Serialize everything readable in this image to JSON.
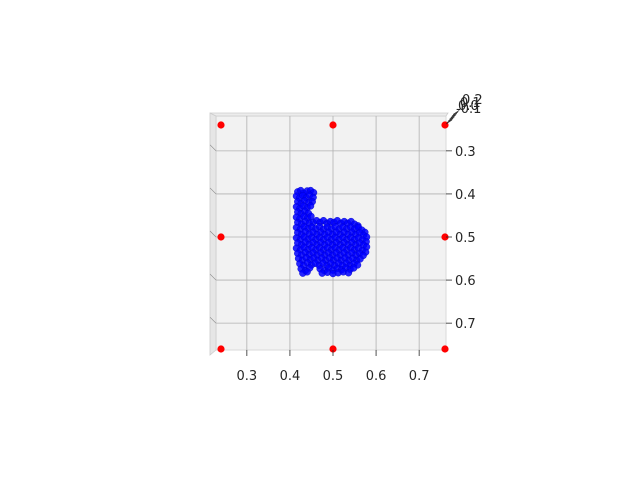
{
  "chart_data": {
    "type": "scatter",
    "projection": "3d",
    "view": "top-down (viewed along z axis)",
    "xlim": [
      0.24,
      0.76
    ],
    "ylim": [
      0.24,
      0.76
    ],
    "y_axis_inverted": true,
    "zlim": [
      -0.1,
      0.2
    ],
    "grid": true,
    "x_ticks": [
      "0.3",
      "0.4",
      "0.5",
      "0.6",
      "0.7"
    ],
    "y_ticks": [
      "0.3",
      "0.4",
      "0.5",
      "0.6",
      "0.7"
    ],
    "z_ticks": [
      "0.2",
      "0.1",
      "0.0",
      "-0.1"
    ],
    "series": [
      {
        "marker_color": "#0000ff",
        "description": "dense blue point cloud forming an L/boot shape",
        "points": [
          [
            0.418,
            0.395
          ],
          [
            0.425,
            0.392
          ],
          [
            0.432,
            0.398
          ],
          [
            0.44,
            0.393
          ],
          [
            0.448,
            0.392
          ],
          [
            0.455,
            0.397
          ],
          [
            0.415,
            0.405
          ],
          [
            0.422,
            0.41
          ],
          [
            0.43,
            0.404
          ],
          [
            0.438,
            0.409
          ],
          [
            0.446,
            0.403
          ],
          [
            0.454,
            0.408
          ],
          [
            0.418,
            0.418
          ],
          [
            0.426,
            0.422
          ],
          [
            0.434,
            0.416
          ],
          [
            0.444,
            0.42
          ],
          [
            0.452,
            0.418
          ],
          [
            0.415,
            0.43
          ],
          [
            0.423,
            0.434
          ],
          [
            0.431,
            0.428
          ],
          [
            0.44,
            0.432
          ],
          [
            0.448,
            0.428
          ],
          [
            0.418,
            0.442
          ],
          [
            0.426,
            0.446
          ],
          [
            0.435,
            0.44
          ],
          [
            0.443,
            0.445
          ],
          [
            0.415,
            0.454
          ],
          [
            0.423,
            0.458
          ],
          [
            0.432,
            0.452
          ],
          [
            0.441,
            0.456
          ],
          [
            0.449,
            0.452
          ],
          [
            0.418,
            0.466
          ],
          [
            0.427,
            0.47
          ],
          [
            0.436,
            0.464
          ],
          [
            0.445,
            0.468
          ],
          [
            0.454,
            0.466
          ],
          [
            0.462,
            0.462
          ],
          [
            0.47,
            0.466
          ],
          [
            0.478,
            0.462
          ],
          [
            0.486,
            0.468
          ],
          [
            0.494,
            0.464
          ],
          [
            0.502,
            0.466
          ],
          [
            0.51,
            0.462
          ],
          [
            0.518,
            0.468
          ],
          [
            0.526,
            0.464
          ],
          [
            0.534,
            0.468
          ],
          [
            0.542,
            0.464
          ],
          [
            0.55,
            0.47
          ],
          [
            0.558,
            0.474
          ],
          [
            0.415,
            0.478
          ],
          [
            0.424,
            0.482
          ],
          [
            0.433,
            0.476
          ],
          [
            0.442,
            0.48
          ],
          [
            0.451,
            0.477
          ],
          [
            0.46,
            0.481
          ],
          [
            0.469,
            0.476
          ],
          [
            0.478,
            0.482
          ],
          [
            0.487,
            0.477
          ],
          [
            0.496,
            0.481
          ],
          [
            0.505,
            0.476
          ],
          [
            0.514,
            0.482
          ],
          [
            0.523,
            0.477
          ],
          [
            0.532,
            0.481
          ],
          [
            0.541,
            0.477
          ],
          [
            0.55,
            0.482
          ],
          [
            0.559,
            0.478
          ],
          [
            0.567,
            0.484
          ],
          [
            0.574,
            0.489
          ],
          [
            0.418,
            0.49
          ],
          [
            0.427,
            0.494
          ],
          [
            0.436,
            0.488
          ],
          [
            0.445,
            0.493
          ],
          [
            0.454,
            0.489
          ],
          [
            0.463,
            0.494
          ],
          [
            0.472,
            0.489
          ],
          [
            0.481,
            0.494
          ],
          [
            0.49,
            0.489
          ],
          [
            0.499,
            0.494
          ],
          [
            0.508,
            0.489
          ],
          [
            0.517,
            0.494
          ],
          [
            0.526,
            0.489
          ],
          [
            0.535,
            0.494
          ],
          [
            0.544,
            0.489
          ],
          [
            0.553,
            0.494
          ],
          [
            0.562,
            0.49
          ],
          [
            0.571,
            0.496
          ],
          [
            0.578,
            0.5
          ],
          [
            0.415,
            0.502
          ],
          [
            0.424,
            0.506
          ],
          [
            0.433,
            0.5
          ],
          [
            0.442,
            0.505
          ],
          [
            0.451,
            0.501
          ],
          [
            0.46,
            0.506
          ],
          [
            0.469,
            0.501
          ],
          [
            0.478,
            0.506
          ],
          [
            0.487,
            0.501
          ],
          [
            0.496,
            0.506
          ],
          [
            0.505,
            0.501
          ],
          [
            0.514,
            0.506
          ],
          [
            0.523,
            0.501
          ],
          [
            0.532,
            0.506
          ],
          [
            0.541,
            0.501
          ],
          [
            0.55,
            0.506
          ],
          [
            0.559,
            0.502
          ],
          [
            0.568,
            0.507
          ],
          [
            0.577,
            0.511
          ],
          [
            0.418,
            0.514
          ],
          [
            0.427,
            0.518
          ],
          [
            0.436,
            0.512
          ],
          [
            0.445,
            0.517
          ],
          [
            0.454,
            0.513
          ],
          [
            0.463,
            0.518
          ],
          [
            0.472,
            0.513
          ],
          [
            0.481,
            0.518
          ],
          [
            0.49,
            0.513
          ],
          [
            0.499,
            0.518
          ],
          [
            0.508,
            0.513
          ],
          [
            0.517,
            0.518
          ],
          [
            0.526,
            0.513
          ],
          [
            0.535,
            0.518
          ],
          [
            0.544,
            0.513
          ],
          [
            0.553,
            0.518
          ],
          [
            0.562,
            0.514
          ],
          [
            0.571,
            0.519
          ],
          [
            0.578,
            0.523
          ],
          [
            0.415,
            0.526
          ],
          [
            0.424,
            0.53
          ],
          [
            0.433,
            0.524
          ],
          [
            0.442,
            0.529
          ],
          [
            0.451,
            0.525
          ],
          [
            0.46,
            0.53
          ],
          [
            0.469,
            0.525
          ],
          [
            0.478,
            0.53
          ],
          [
            0.487,
            0.525
          ],
          [
            0.496,
            0.53
          ],
          [
            0.505,
            0.525
          ],
          [
            0.514,
            0.53
          ],
          [
            0.523,
            0.525
          ],
          [
            0.532,
            0.53
          ],
          [
            0.541,
            0.525
          ],
          [
            0.55,
            0.53
          ],
          [
            0.559,
            0.526
          ],
          [
            0.568,
            0.531
          ],
          [
            0.576,
            0.535
          ],
          [
            0.418,
            0.538
          ],
          [
            0.427,
            0.542
          ],
          [
            0.436,
            0.536
          ],
          [
            0.445,
            0.541
          ],
          [
            0.454,
            0.537
          ],
          [
            0.463,
            0.542
          ],
          [
            0.472,
            0.537
          ],
          [
            0.481,
            0.542
          ],
          [
            0.49,
            0.537
          ],
          [
            0.499,
            0.542
          ],
          [
            0.508,
            0.537
          ],
          [
            0.517,
            0.542
          ],
          [
            0.526,
            0.537
          ],
          [
            0.535,
            0.542
          ],
          [
            0.544,
            0.537
          ],
          [
            0.553,
            0.542
          ],
          [
            0.562,
            0.538
          ],
          [
            0.57,
            0.543
          ],
          [
            0.42,
            0.55
          ],
          [
            0.429,
            0.554
          ],
          [
            0.438,
            0.548
          ],
          [
            0.447,
            0.553
          ],
          [
            0.456,
            0.549
          ],
          [
            0.465,
            0.554
          ],
          [
            0.474,
            0.549
          ],
          [
            0.483,
            0.554
          ],
          [
            0.492,
            0.549
          ],
          [
            0.501,
            0.554
          ],
          [
            0.51,
            0.549
          ],
          [
            0.519,
            0.554
          ],
          [
            0.528,
            0.549
          ],
          [
            0.537,
            0.554
          ],
          [
            0.546,
            0.55
          ],
          [
            0.555,
            0.554
          ],
          [
            0.563,
            0.551
          ],
          [
            0.423,
            0.562
          ],
          [
            0.432,
            0.566
          ],
          [
            0.441,
            0.56
          ],
          [
            0.45,
            0.565
          ],
          [
            0.459,
            0.561
          ],
          [
            0.468,
            0.566
          ],
          [
            0.477,
            0.561
          ],
          [
            0.486,
            0.566
          ],
          [
            0.495,
            0.561
          ],
          [
            0.504,
            0.566
          ],
          [
            0.513,
            0.561
          ],
          [
            0.522,
            0.566
          ],
          [
            0.531,
            0.561
          ],
          [
            0.54,
            0.566
          ],
          [
            0.549,
            0.562
          ],
          [
            0.557,
            0.565
          ],
          [
            0.426,
            0.574
          ],
          [
            0.436,
            0.578
          ],
          [
            0.446,
            0.572
          ],
          [
            0.47,
            0.574
          ],
          [
            0.48,
            0.578
          ],
          [
            0.49,
            0.572
          ],
          [
            0.5,
            0.577
          ],
          [
            0.51,
            0.573
          ],
          [
            0.52,
            0.576
          ],
          [
            0.53,
            0.572
          ],
          [
            0.54,
            0.575
          ],
          [
            0.548,
            0.572
          ],
          [
            0.43,
            0.584
          ],
          [
            0.44,
            0.581
          ],
          [
            0.475,
            0.584
          ],
          [
            0.487,
            0.582
          ],
          [
            0.5,
            0.585
          ],
          [
            0.512,
            0.583
          ],
          [
            0.524,
            0.581
          ],
          [
            0.536,
            0.583
          ]
        ]
      }
    ],
    "corner_markers": {
      "color": "#ff0000",
      "points": [
        [
          0.24,
          0.24
        ],
        [
          0.5,
          0.24
        ],
        [
          0.76,
          0.24
        ],
        [
          0.24,
          0.5
        ],
        [
          0.76,
          0.5
        ],
        [
          0.24,
          0.76
        ],
        [
          0.5,
          0.76
        ],
        [
          0.76,
          0.76
        ]
      ]
    }
  }
}
